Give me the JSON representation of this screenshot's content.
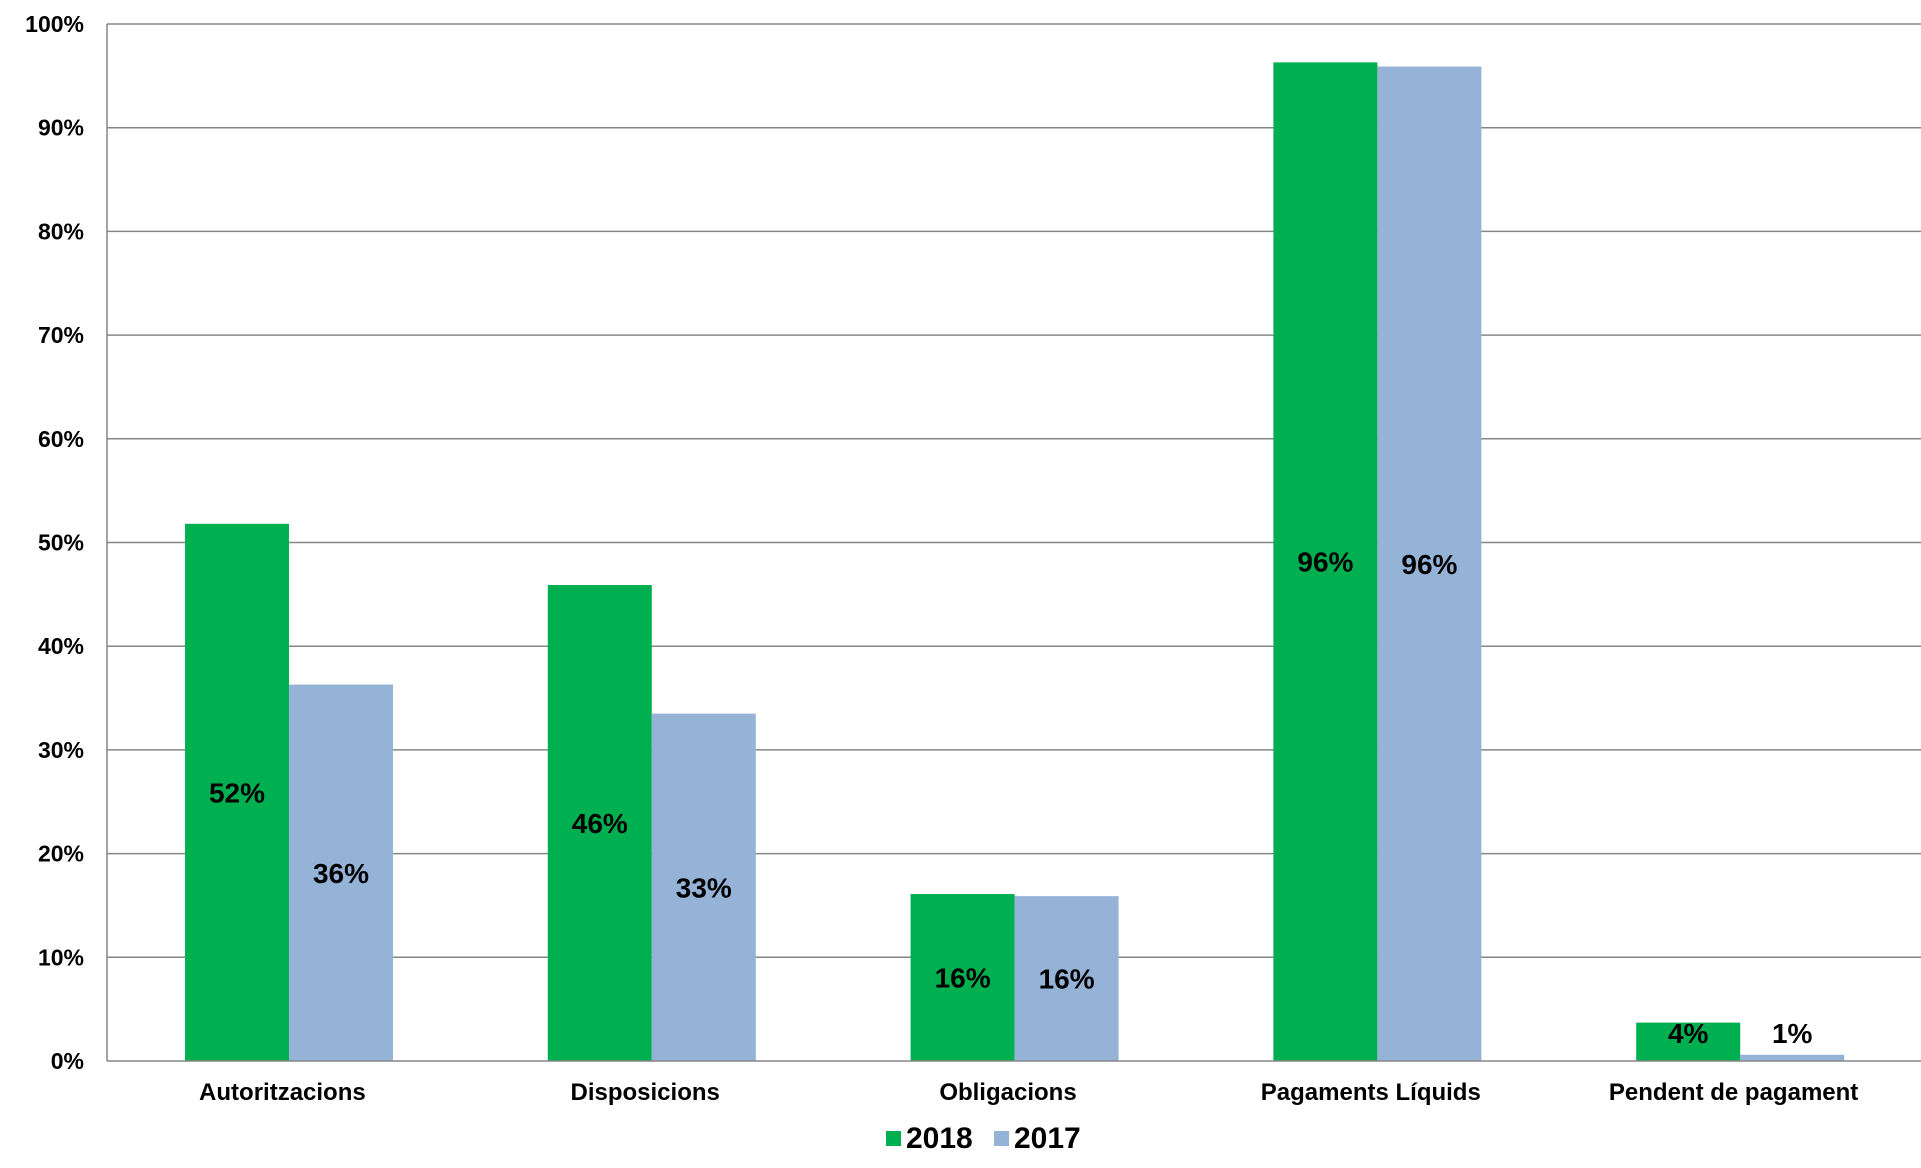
{
  "chart_data": {
    "type": "bar",
    "categories": [
      "Autoritzacions",
      "Disposicions",
      "Obligacions",
      "Pagaments Líquids",
      "Pendent de pagament"
    ],
    "series": [
      {
        "name": "2018",
        "color": "#00b050",
        "values": [
          51.8,
          45.9,
          16.1,
          96.3,
          3.7
        ],
        "labels": [
          "52%",
          "46%",
          "16%",
          "96%",
          "4%"
        ]
      },
      {
        "name": "2017",
        "color": "#95b3d7",
        "values": [
          36.3,
          33.5,
          15.9,
          95.9,
          0.6
        ],
        "labels": [
          "36%",
          "33%",
          "16%",
          "96%",
          "1%"
        ]
      }
    ],
    "yticks": [
      "0%",
      "10%",
      "20%",
      "30%",
      "40%",
      "50%",
      "60%",
      "70%",
      "80%",
      "90%",
      "100%"
    ],
    "ylim": [
      0,
      100
    ],
    "grid": true,
    "legend_position": "bottom-center"
  }
}
